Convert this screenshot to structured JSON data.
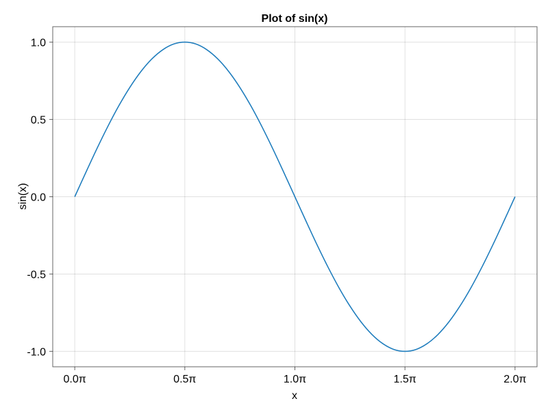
{
  "chart_data": {
    "type": "line",
    "title": "Plot of sin(x)",
    "xlabel": "x",
    "ylabel": "sin(x)",
    "x_unit": "π",
    "xlim": [
      -0.1,
      2.1
    ],
    "ylim": [
      -1.1,
      1.1
    ],
    "grid": true,
    "x_ticks": [
      0.0,
      0.5,
      1.0,
      1.5,
      2.0
    ],
    "x_tick_labels": [
      "0.0π",
      "0.5π",
      "1.0π",
      "1.5π",
      "2.0π"
    ],
    "y_ticks": [
      1.0,
      0.5,
      0.0,
      -0.5,
      -1.0
    ],
    "y_tick_labels": [
      "1.0",
      "0.5",
      "0.0",
      "-0.5",
      "-1.0"
    ],
    "series": [
      {
        "color": "#1f7dbd",
        "x": [
          0,
          0.05,
          0.1,
          0.15,
          0.2,
          0.25,
          0.3,
          0.35,
          0.4,
          0.45,
          0.5,
          0.55,
          0.6,
          0.65,
          0.7,
          0.75,
          0.8,
          0.85,
          0.9,
          0.95,
          1.0,
          1.05,
          1.1,
          1.15,
          1.2,
          1.25,
          1.3,
          1.35,
          1.4,
          1.45,
          1.5,
          1.55,
          1.6,
          1.65,
          1.7,
          1.75,
          1.8,
          1.85,
          1.9,
          1.95,
          2.0
        ],
        "y": [
          0,
          0.156,
          0.309,
          0.454,
          0.588,
          0.707,
          0.809,
          0.891,
          0.951,
          0.988,
          1,
          0.988,
          0.951,
          0.891,
          0.809,
          0.707,
          0.588,
          0.454,
          0.309,
          0.156,
          0,
          -0.156,
          -0.309,
          -0.454,
          -0.588,
          -0.707,
          -0.809,
          -0.891,
          -0.951,
          -0.988,
          -1,
          -0.988,
          -0.951,
          -0.891,
          -0.809,
          -0.707,
          -0.588,
          -0.454,
          -0.309,
          -0.156,
          0
        ]
      }
    ]
  }
}
